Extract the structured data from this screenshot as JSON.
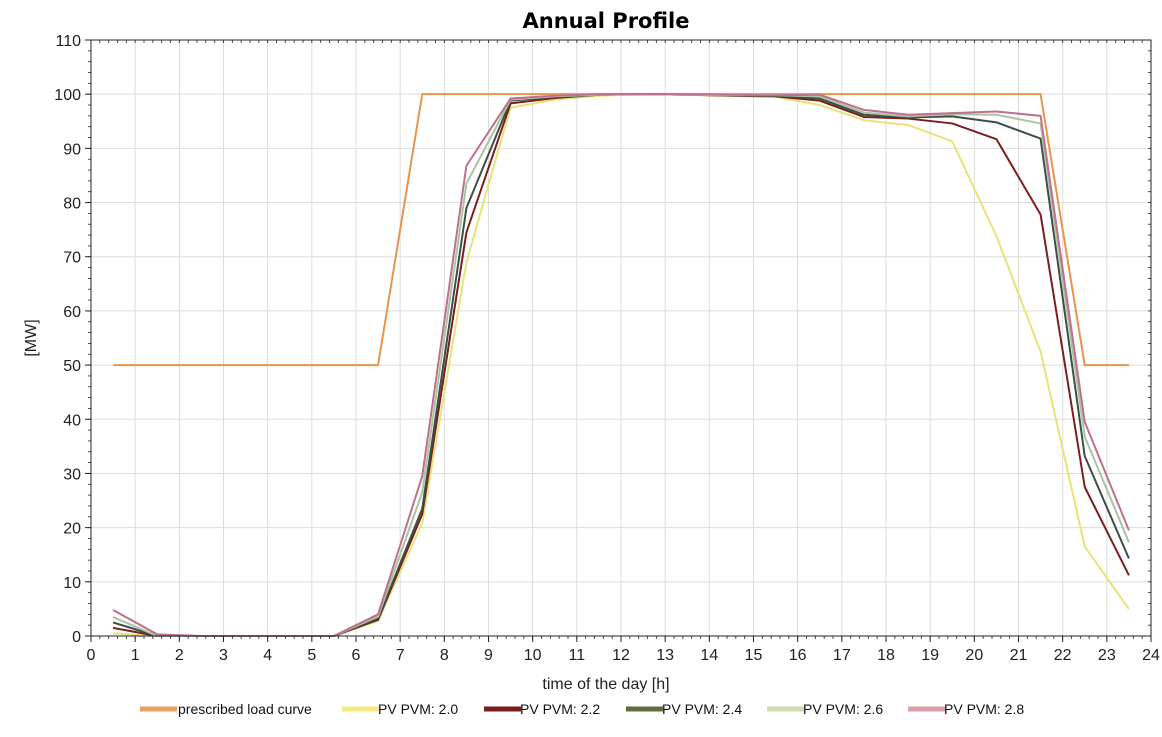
{
  "chart_data": {
    "type": "line",
    "title": "Annual Profile",
    "xlabel": "time of the day [h]",
    "ylabel": "[MW]",
    "xlim": [
      0,
      24
    ],
    "ylim": [
      0,
      110
    ],
    "x_ticks": [
      0,
      1,
      2,
      3,
      4,
      5,
      6,
      7,
      8,
      9,
      10,
      11,
      12,
      13,
      14,
      15,
      16,
      17,
      18,
      19,
      20,
      21,
      22,
      23,
      24
    ],
    "y_ticks": [
      0,
      10,
      20,
      30,
      40,
      50,
      60,
      70,
      80,
      90,
      100,
      110
    ],
    "grid": true,
    "legend_position": "bottom",
    "x": [
      0.5,
      1.5,
      2.5,
      3.5,
      4.5,
      5.5,
      6.5,
      7.5,
      8.5,
      9.5,
      10.5,
      11.5,
      12.5,
      13.5,
      14.5,
      15.5,
      16.5,
      17.5,
      18.5,
      19.5,
      20.5,
      21.5,
      22.5,
      23.5
    ],
    "series": [
      {
        "name": "prescribed load curve",
        "color": "#E8944A",
        "values": [
          50,
          50,
          50,
          50,
          50,
          50,
          50,
          100,
          100,
          100,
          100,
          100,
          100,
          100,
          100,
          100,
          100,
          100,
          100,
          100,
          100,
          100,
          50,
          50
        ]
      },
      {
        "name": "PV PVM: 2.0",
        "color": "#E8E27A",
        "values": [
          0.5,
          0,
          0,
          0,
          0,
          0,
          2.8,
          20.8,
          69,
          97.5,
          99,
          99.7,
          100,
          99.9,
          99.7,
          99.5,
          98,
          95.2,
          94.3,
          91.3,
          73.8,
          52.5,
          16.5,
          5
        ]
      },
      {
        "name": "PV PVM: 2.2",
        "color": "#7A1E1E",
        "values": [
          1.5,
          0,
          0,
          0,
          0,
          0,
          3,
          22.5,
          74.5,
          98.3,
          99.3,
          99.9,
          100,
          99.9,
          99.7,
          99.6,
          98.8,
          95.8,
          95.5,
          94.6,
          91.7,
          77.8,
          27.5,
          11.2
        ]
      },
      {
        "name": "PV PVM: 2.4",
        "color": "#3E4E44",
        "values": [
          2.5,
          0,
          0,
          0,
          0,
          0,
          3.2,
          23.5,
          79,
          98.8,
          99.5,
          99.9,
          100,
          99.9,
          99.8,
          99.7,
          99.2,
          96.2,
          95.7,
          95.9,
          94.8,
          91.8,
          33.2,
          14.3
        ]
      },
      {
        "name": "PV PVM: 2.6",
        "color": "#A9C4A2",
        "values": [
          3.5,
          0,
          0,
          0,
          0,
          0,
          3.6,
          26.5,
          83.5,
          99,
          99.6,
          99.9,
          100,
          99.9,
          99.8,
          99.8,
          99.6,
          96.6,
          95.9,
          96.3,
          96.2,
          94.6,
          36.8,
          17.3
        ]
      },
      {
        "name": "PV PVM: 2.8",
        "color": "#C0708C",
        "values": [
          4.8,
          0.3,
          0,
          0,
          0,
          0,
          4,
          29.5,
          86.8,
          99.2,
          99.7,
          100,
          100,
          100,
          99.9,
          99.8,
          99.9,
          97.1,
          96.2,
          96.5,
          96.8,
          96,
          39.5,
          19.5
        ]
      }
    ]
  },
  "legend_swatch_colors": [
    "#E8A060",
    "#F0EA80",
    "#7A1E1E",
    "#5E6E40",
    "#CEDDB0",
    "#D8A0A8"
  ]
}
